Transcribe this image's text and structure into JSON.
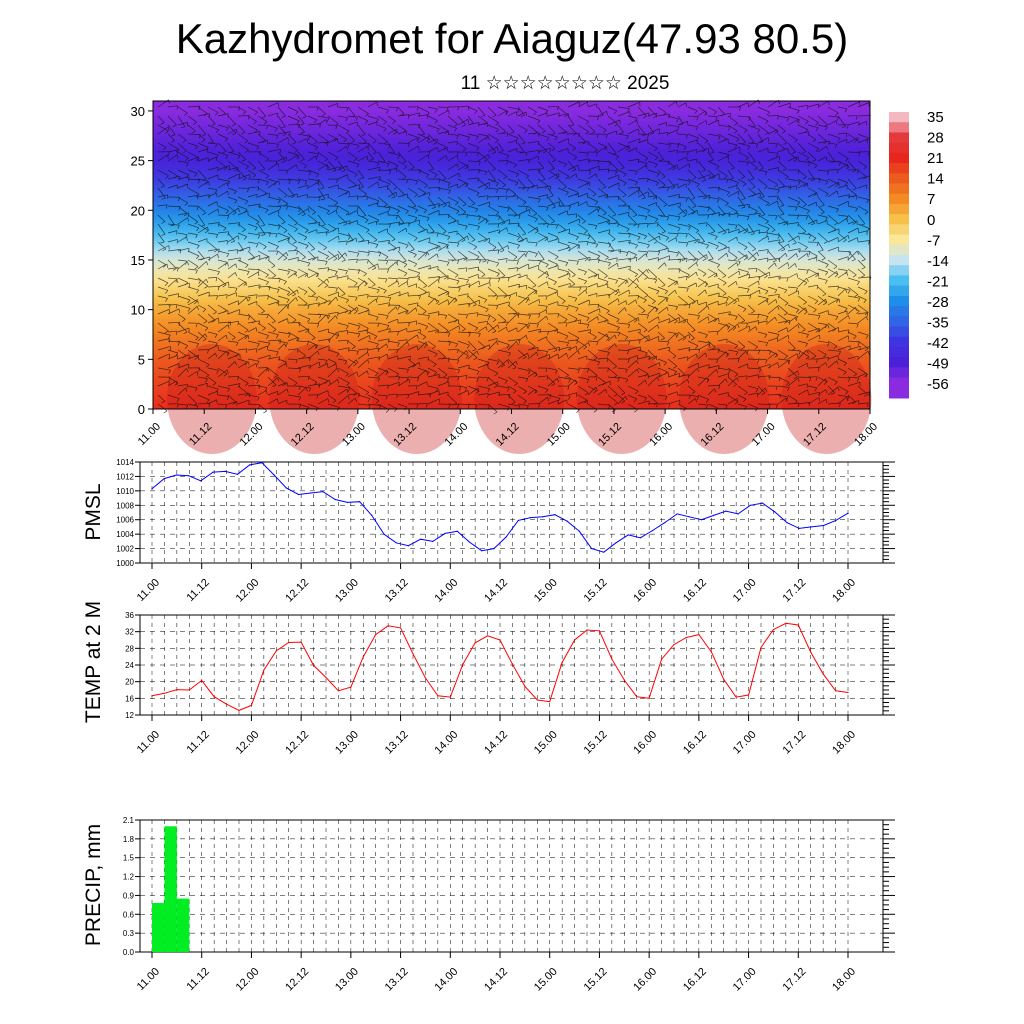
{
  "title": "Kazhydromet for Aiaguz(47.93 80.5)",
  "subtitle": "11 ☆☆☆☆☆☆☆☆ 2025",
  "chart_data": [
    {
      "type": "heatmap",
      "name": "wind-temperature-cross-section",
      "xlabel": "",
      "ylabel": "",
      "ylim": [
        0,
        31
      ],
      "yticks": [
        0,
        5,
        10,
        15,
        20,
        25,
        30
      ],
      "xtick_labels": [
        "11.00",
        "11.12",
        "12.00",
        "12.12",
        "13.00",
        "13.12",
        "14.00",
        "14.12",
        "15.00",
        "15.12",
        "16.00",
        "16.12",
        "17.00",
        "17.12",
        "18.00"
      ],
      "colorbar_labels": [
        "35",
        "28",
        "21",
        "14",
        "7",
        "0",
        "-7",
        "-14",
        "-21",
        "-28",
        "-35",
        "-42",
        "-49",
        "-56"
      ],
      "colorbar_colors": [
        "#f4b8c0",
        "#e43a3e",
        "#e8261e",
        "#ec5a1e",
        "#f48a22",
        "#f6c04a",
        "#fbe79a",
        "#c6e4f0",
        "#48bff0",
        "#1e8ee8",
        "#3264e6",
        "#3f35e0",
        "#4a20d8",
        "#8a2be0"
      ],
      "temperature_at_levels": [
        {
          "level": 0,
          "value": 20
        },
        {
          "level": 5,
          "value": 14
        },
        {
          "level": 10,
          "value": 3
        },
        {
          "level": 15,
          "value": -12
        },
        {
          "level": 20,
          "value": -30
        },
        {
          "level": 25,
          "value": -48
        },
        {
          "level": 30,
          "value": -56
        }
      ],
      "wind_barbs": true
    },
    {
      "type": "line",
      "name": "PMSL",
      "ylabel": "PMSL",
      "ylim": [
        1000,
        1014
      ],
      "yticks": [
        1000,
        1002,
        1004,
        1006,
        1008,
        1010,
        1012,
        1014
      ],
      "xtick_labels": [
        "11.00",
        "11.12",
        "12.00",
        "12.12",
        "13.00",
        "13.12",
        "14.00",
        "14.12",
        "15.00",
        "15.12",
        "16.00",
        "16.12",
        "17.00",
        "17.12",
        "18.00"
      ],
      "color": "#0000ff",
      "values": [
        1010.3,
        1011.7,
        1012.2,
        1012.1,
        1011.4,
        1012.6,
        1012.7,
        1012.3,
        1013.6,
        1013.9,
        1012.2,
        1010.4,
        1009.5,
        1009.7,
        1009.9,
        1008.8,
        1008.4,
        1008.5,
        1006.6,
        1004.0,
        1002.8,
        1002.4,
        1003.3,
        1003.0,
        1004.1,
        1004.4,
        1002.9,
        1001.7,
        1002.0,
        1003.6,
        1005.9,
        1006.3,
        1006.4,
        1006.7,
        1005.8,
        1004.4,
        1002.0,
        1001.5,
        1002.8,
        1003.9,
        1003.5,
        1004.5,
        1005.6,
        1006.8,
        1006.4,
        1006.0,
        1006.6,
        1007.2,
        1006.8,
        1008.0,
        1008.3,
        1007.1,
        1005.6,
        1004.8,
        1005.0,
        1005.2,
        1005.9,
        1006.9
      ]
    },
    {
      "type": "line",
      "name": "TEMP at 2 M",
      "ylabel": "TEMP at 2 M",
      "ylim": [
        12,
        36
      ],
      "yticks": [
        12,
        16,
        20,
        24,
        28,
        32,
        36
      ],
      "xtick_labels": [
        "11.00",
        "11.12",
        "12.00",
        "12.12",
        "13.00",
        "13.12",
        "14.00",
        "14.12",
        "15.00",
        "15.12",
        "16.00",
        "16.12",
        "17.00",
        "17.12",
        "18.00"
      ],
      "color": "#ff0000",
      "values": [
        16.6,
        17.2,
        18.1,
        18.0,
        20.3,
        16.4,
        14.6,
        13.1,
        14.3,
        22.8,
        27.4,
        29.4,
        29.5,
        23.9,
        21.0,
        17.8,
        18.7,
        26.0,
        31.3,
        33.4,
        32.9,
        26.7,
        20.9,
        16.6,
        16.3,
        24.1,
        29.3,
        31.0,
        30.0,
        24.2,
        18.9,
        15.6,
        15.2,
        24.6,
        30.0,
        32.4,
        32.2,
        25.4,
        20.4,
        16.4,
        16.0,
        25.4,
        28.9,
        30.6,
        31.3,
        27.2,
        20.6,
        16.3,
        16.8,
        28.2,
        32.5,
        34.0,
        33.6,
        27.1,
        21.9,
        17.8,
        17.4
      ]
    },
    {
      "type": "bar",
      "name": "PRECIP, mm",
      "ylabel": "PRECIP, mm",
      "ylim": [
        0,
        2.1
      ],
      "yticks": [
        0.0,
        0.3,
        0.6,
        0.9,
        1.2,
        1.5,
        1.8,
        2.1
      ],
      "ytick_labels": [
        "0.0",
        "0.3",
        "0.6",
        "0.9",
        "1.2",
        "1.5",
        "1.8",
        "2.1"
      ],
      "xtick_labels": [
        "11.00",
        "11.12",
        "12.00",
        "12.12",
        "13.00",
        "13.12",
        "14.00",
        "14.12",
        "15.00",
        "15.12",
        "16.00",
        "16.12",
        "17.00",
        "17.12",
        "18.00"
      ],
      "color": "#00ee22",
      "bars": [
        {
          "x_start": 0,
          "x_end": 1,
          "value": 0.78
        },
        {
          "x_start": 1,
          "x_end": 2,
          "value": 2.0
        },
        {
          "x_start": 2,
          "x_end": 3,
          "value": 0.85
        }
      ]
    }
  ]
}
